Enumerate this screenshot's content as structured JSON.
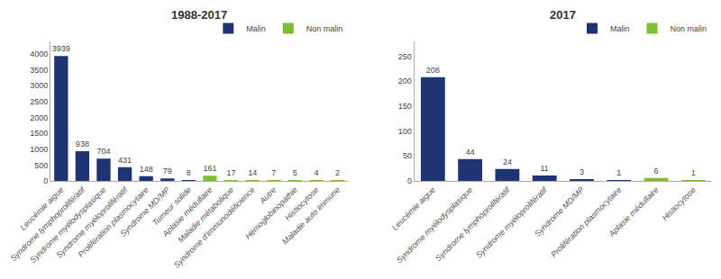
{
  "chart_data": [
    {
      "type": "bar",
      "title": "1988-2017",
      "categories": [
        "Leucémie aigue",
        "Syndrome lymphoprolifératif",
        "Syndrome myélodysplasique",
        "Syndrome myéloprolifératif",
        "Prolifération plasmocytaire",
        "Syndrome MD/MP",
        "Tumeur solide",
        "Aplasie médullaire",
        "Maladie métabolique",
        "Syndrome d'immunodéficience",
        "Autre",
        "Hémoglobinopathie",
        "Histiocytose",
        "Maladie auto immune"
      ],
      "series": [
        {
          "name": "Malin",
          "color": "#1F3472",
          "values": [
            3939,
            938,
            704,
            431,
            148,
            79,
            8,
            null,
            null,
            null,
            null,
            null,
            null,
            null
          ]
        },
        {
          "name": "Non malin",
          "color": "#7DBF2E",
          "values": [
            null,
            null,
            null,
            null,
            null,
            null,
            null,
            161,
            17,
            14,
            7,
            5,
            4,
            2
          ]
        }
      ],
      "ylim": [
        0,
        4400
      ],
      "yticks": [
        0,
        500,
        1000,
        1500,
        2000,
        2500,
        3000,
        3500,
        4000
      ],
      "grid": false,
      "legend": "upper right",
      "data_labels": true
    },
    {
      "type": "bar",
      "title": "2017",
      "categories": [
        "Leucémie aigue",
        "Syndrome myélodysplasique",
        "Syndrome lymphoprolifératif",
        "Syndrome myéloprolifératif",
        "Syndrome MD/MP",
        "Prolifération plasmocytaire",
        "Aplasie médullaire",
        "Histiocytose"
      ],
      "series": [
        {
          "name": "Malin",
          "color": "#1F3472",
          "values": [
            208,
            44,
            24,
            11,
            3,
            1,
            null,
            null
          ]
        },
        {
          "name": "Non malin",
          "color": "#7DBF2E",
          "values": [
            null,
            null,
            null,
            null,
            null,
            null,
            6,
            1
          ]
        }
      ],
      "ylim": [
        0,
        280
      ],
      "yticks": [
        0,
        50,
        100,
        150,
        200,
        250
      ],
      "grid": false,
      "legend": "upper right",
      "data_labels": true
    }
  ]
}
